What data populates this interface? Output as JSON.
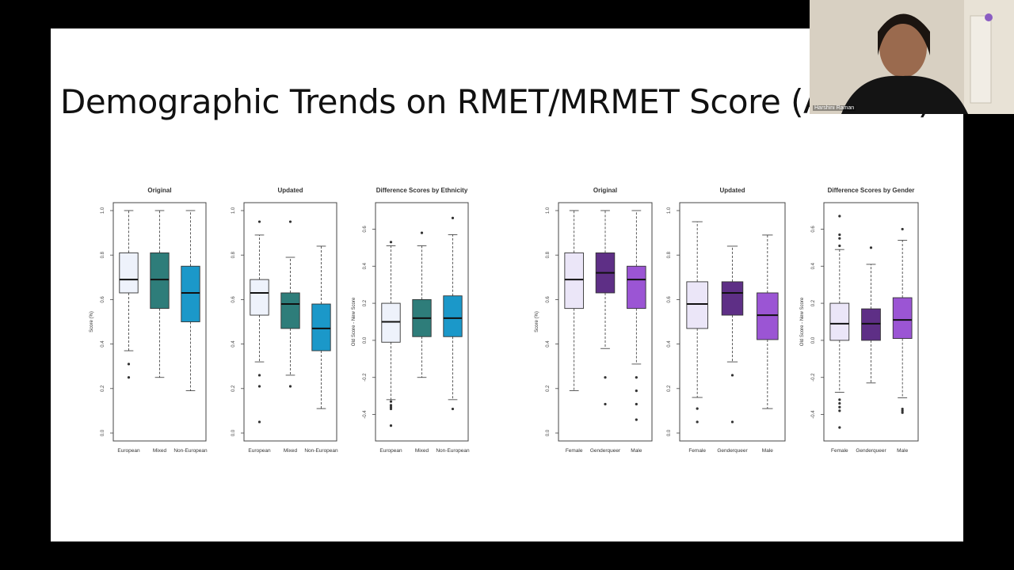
{
  "slide": {
    "title": "Demographic Trends on RMET/MRMET Score (ANOVA)"
  },
  "webcam": {
    "participant_name": "Harshini Raman"
  },
  "colors": {
    "european": "#eef2fb",
    "mixed": "#2e7d7a",
    "non_european": "#1b98c9",
    "female": "#ebe6f8",
    "genderqueer": "#5e2f86",
    "male": "#9b55d4"
  },
  "chart_data": [
    {
      "type": "box",
      "title": "Original",
      "xlabel": "",
      "ylabel": "Score (%)",
      "ylim": [
        0,
        1
      ],
      "yticks": [
        "0.0",
        "0.2",
        "0.4",
        "0.6",
        "0.8",
        "1.0"
      ],
      "categories": [
        "European",
        "Mixed",
        "Non-European"
      ],
      "colors": [
        "#eef2fb",
        "#2e7d7a",
        "#1b98c9"
      ],
      "boxes": [
        {
          "min": 0.37,
          "q1": 0.63,
          "median": 0.69,
          "q3": 0.81,
          "max": 1.0,
          "outliers": [
            0.31,
            0.25
          ]
        },
        {
          "min": 0.25,
          "q1": 0.56,
          "median": 0.69,
          "q3": 0.81,
          "max": 1.0,
          "outliers": []
        },
        {
          "min": 0.19,
          "q1": 0.5,
          "median": 0.63,
          "q3": 0.75,
          "max": 1.0,
          "outliers": []
        }
      ]
    },
    {
      "type": "box",
      "title": "Updated",
      "xlabel": "",
      "ylabel": "",
      "ylim": [
        0,
        1
      ],
      "yticks": [
        "0.0",
        "0.2",
        "0.4",
        "0.6",
        "0.8",
        "1.0"
      ],
      "categories": [
        "European",
        "Mixed",
        "Non-European"
      ],
      "colors": [
        "#eef2fb",
        "#2e7d7a",
        "#1b98c9"
      ],
      "boxes": [
        {
          "min": 0.32,
          "q1": 0.53,
          "median": 0.63,
          "q3": 0.69,
          "max": 0.89,
          "outliers": [
            0.95,
            0.26,
            0.21,
            0.05
          ]
        },
        {
          "min": 0.26,
          "q1": 0.47,
          "median": 0.58,
          "q3": 0.63,
          "max": 0.79,
          "outliers": [
            0.95,
            0.21
          ]
        },
        {
          "min": 0.11,
          "q1": 0.37,
          "median": 0.47,
          "q3": 0.58,
          "max": 0.84,
          "outliers": []
        }
      ]
    },
    {
      "type": "box",
      "title": "Difference Scores by Ethnicity",
      "xlabel": "",
      "ylabel": "Old Score - New Score",
      "ylim": [
        -0.5,
        0.7
      ],
      "yticks": [
        "-0.4",
        "-0.2",
        "0.0",
        "0.2",
        "0.4",
        "0.6"
      ],
      "categories": [
        "European",
        "Mixed",
        "Non-European"
      ],
      "colors": [
        "#eef2fb",
        "#2e7d7a",
        "#1b98c9"
      ],
      "boxes": [
        {
          "min": -0.32,
          "q1": -0.01,
          "median": 0.1,
          "q3": 0.2,
          "max": 0.51,
          "outliers": [
            0.53,
            -0.33,
            -0.35,
            -0.36,
            -0.37,
            -0.46
          ]
        },
        {
          "min": -0.2,
          "q1": 0.02,
          "median": 0.12,
          "q3": 0.22,
          "max": 0.51,
          "outliers": [
            0.58
          ]
        },
        {
          "min": -0.32,
          "q1": 0.02,
          "median": 0.12,
          "q3": 0.24,
          "max": 0.57,
          "outliers": [
            0.66,
            -0.37
          ]
        }
      ]
    },
    {
      "type": "box",
      "title": "Original",
      "xlabel": "",
      "ylabel": "Score (%)",
      "ylim": [
        0,
        1
      ],
      "yticks": [
        "0.0",
        "0.2",
        "0.4",
        "0.6",
        "0.8",
        "1.0"
      ],
      "categories": [
        "Female",
        "Genderqueer",
        "Male"
      ],
      "colors": [
        "#ebe6f8",
        "#5e2f86",
        "#9b55d4"
      ],
      "boxes": [
        {
          "min": 0.19,
          "q1": 0.56,
          "median": 0.69,
          "q3": 0.81,
          "max": 1.0,
          "outliers": []
        },
        {
          "min": 0.38,
          "q1": 0.63,
          "median": 0.72,
          "q3": 0.81,
          "max": 1.0,
          "outliers": [
            0.25,
            0.13
          ]
        },
        {
          "min": 0.31,
          "q1": 0.56,
          "median": 0.69,
          "q3": 0.75,
          "max": 1.0,
          "outliers": [
            0.25,
            0.19,
            0.13,
            0.06
          ]
        }
      ]
    },
    {
      "type": "box",
      "title": "Updated",
      "xlabel": "",
      "ylabel": "",
      "ylim": [
        0,
        1
      ],
      "yticks": [
        "0.0",
        "0.2",
        "0.4",
        "0.6",
        "0.8",
        "1.0"
      ],
      "categories": [
        "Female",
        "Genderqueer",
        "Male"
      ],
      "colors": [
        "#ebe6f8",
        "#5e2f86",
        "#9b55d4"
      ],
      "boxes": [
        {
          "min": 0.16,
          "q1": 0.47,
          "median": 0.58,
          "q3": 0.68,
          "max": 0.95,
          "outliers": [
            0.11,
            0.05
          ]
        },
        {
          "min": 0.32,
          "q1": 0.53,
          "median": 0.63,
          "q3": 0.68,
          "max": 0.84,
          "outliers": [
            0.26,
            0.05
          ]
        },
        {
          "min": 0.11,
          "q1": 0.42,
          "median": 0.53,
          "q3": 0.63,
          "max": 0.89,
          "outliers": []
        }
      ]
    },
    {
      "type": "box",
      "title": "Difference Scores by Gender",
      "xlabel": "",
      "ylabel": "Old Score - New Score",
      "ylim": [
        -0.5,
        0.7
      ],
      "yticks": [
        "-0.4",
        "-0.2",
        "0.0",
        "0.2",
        "0.4",
        "0.6"
      ],
      "categories": [
        "Female",
        "Genderqueer",
        "Male"
      ],
      "colors": [
        "#ebe6f8",
        "#5e2f86",
        "#9b55d4"
      ],
      "boxes": [
        {
          "min": -0.28,
          "q1": 0.0,
          "median": 0.09,
          "q3": 0.2,
          "max": 0.49,
          "outliers": [
            0.67,
            0.57,
            0.55,
            0.51,
            -0.32,
            -0.34,
            -0.36,
            -0.38,
            -0.47
          ]
        },
        {
          "min": -0.23,
          "q1": 0.0,
          "median": 0.09,
          "q3": 0.17,
          "max": 0.41,
          "outliers": [
            0.5
          ]
        },
        {
          "min": -0.31,
          "q1": 0.01,
          "median": 0.11,
          "q3": 0.23,
          "max": 0.54,
          "outliers": [
            0.6,
            -0.37,
            -0.38,
            -0.39
          ]
        }
      ]
    }
  ]
}
